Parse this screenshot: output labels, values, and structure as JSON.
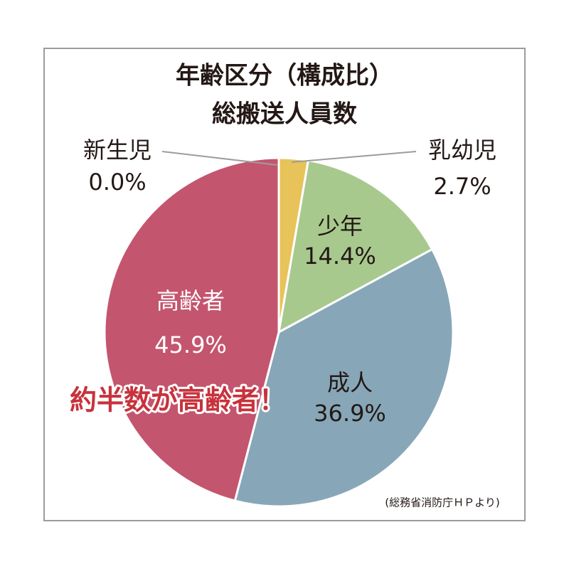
{
  "chart_data": {
    "type": "pie",
    "title": [
      "年齢区分（構成比）",
      "総搬送人員数"
    ],
    "categories": [
      "新生児",
      "乳幼児",
      "少年",
      "成人",
      "高齢者"
    ],
    "values": [
      0.0,
      2.7,
      14.4,
      36.9,
      45.9
    ],
    "value_labels": [
      "0.0%",
      "2.7%",
      "14.4%",
      "36.9%",
      "45.9%"
    ],
    "colors": [
      "#e0e0e0",
      "#e8c35a",
      "#a8c98e",
      "#87a7b8",
      "#c4556e"
    ],
    "annotation": "約半数が高齢者！",
    "source": "(総務省消防庁ＨＰより)"
  }
}
